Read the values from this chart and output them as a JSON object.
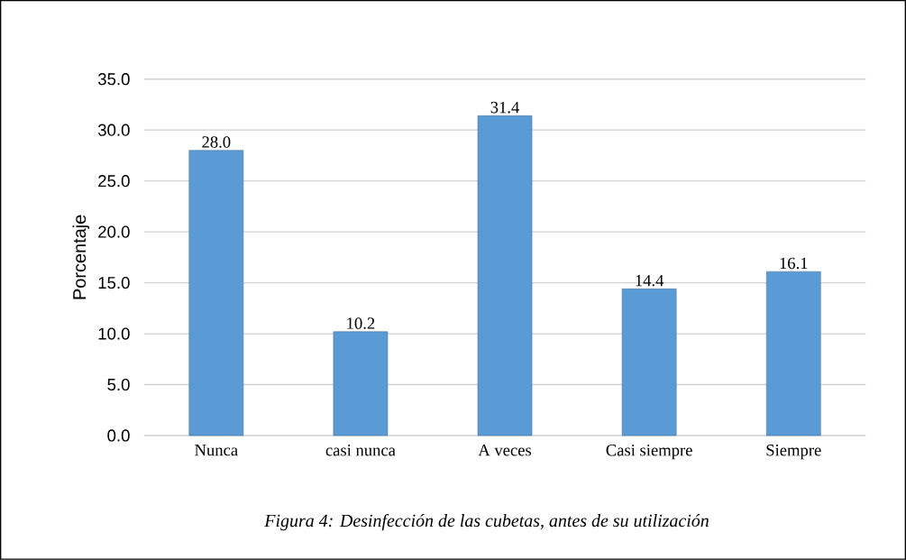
{
  "chart_data": {
    "type": "bar",
    "ylabel": "Porcentaje",
    "categories": [
      "Nunca",
      "casi nunca",
      "A veces",
      "Casi siempre",
      "Siempre"
    ],
    "values": [
      28.0,
      10.2,
      31.4,
      14.4,
      16.1
    ],
    "value_labels": [
      "28.0",
      "10.2",
      "31.4",
      "14.4",
      "16.1"
    ],
    "color": "#5b9bd5",
    "ylim": [
      0,
      35
    ],
    "yticks": [
      {
        "value": 0,
        "label": "0.0"
      },
      {
        "value": 5,
        "label": "5.0"
      },
      {
        "value": 10,
        "label": "10.0"
      },
      {
        "value": 15,
        "label": "15.0"
      },
      {
        "value": 20,
        "label": "20.0"
      },
      {
        "value": 25,
        "label": "25.0"
      },
      {
        "value": 30,
        "label": "30.0"
      },
      {
        "value": 35,
        "label": "35.0"
      }
    ],
    "grid": "y",
    "annotations": [
      "*Figura 4: Desinfección de las cubetas, antes de su utilización*"
    ]
  }
}
